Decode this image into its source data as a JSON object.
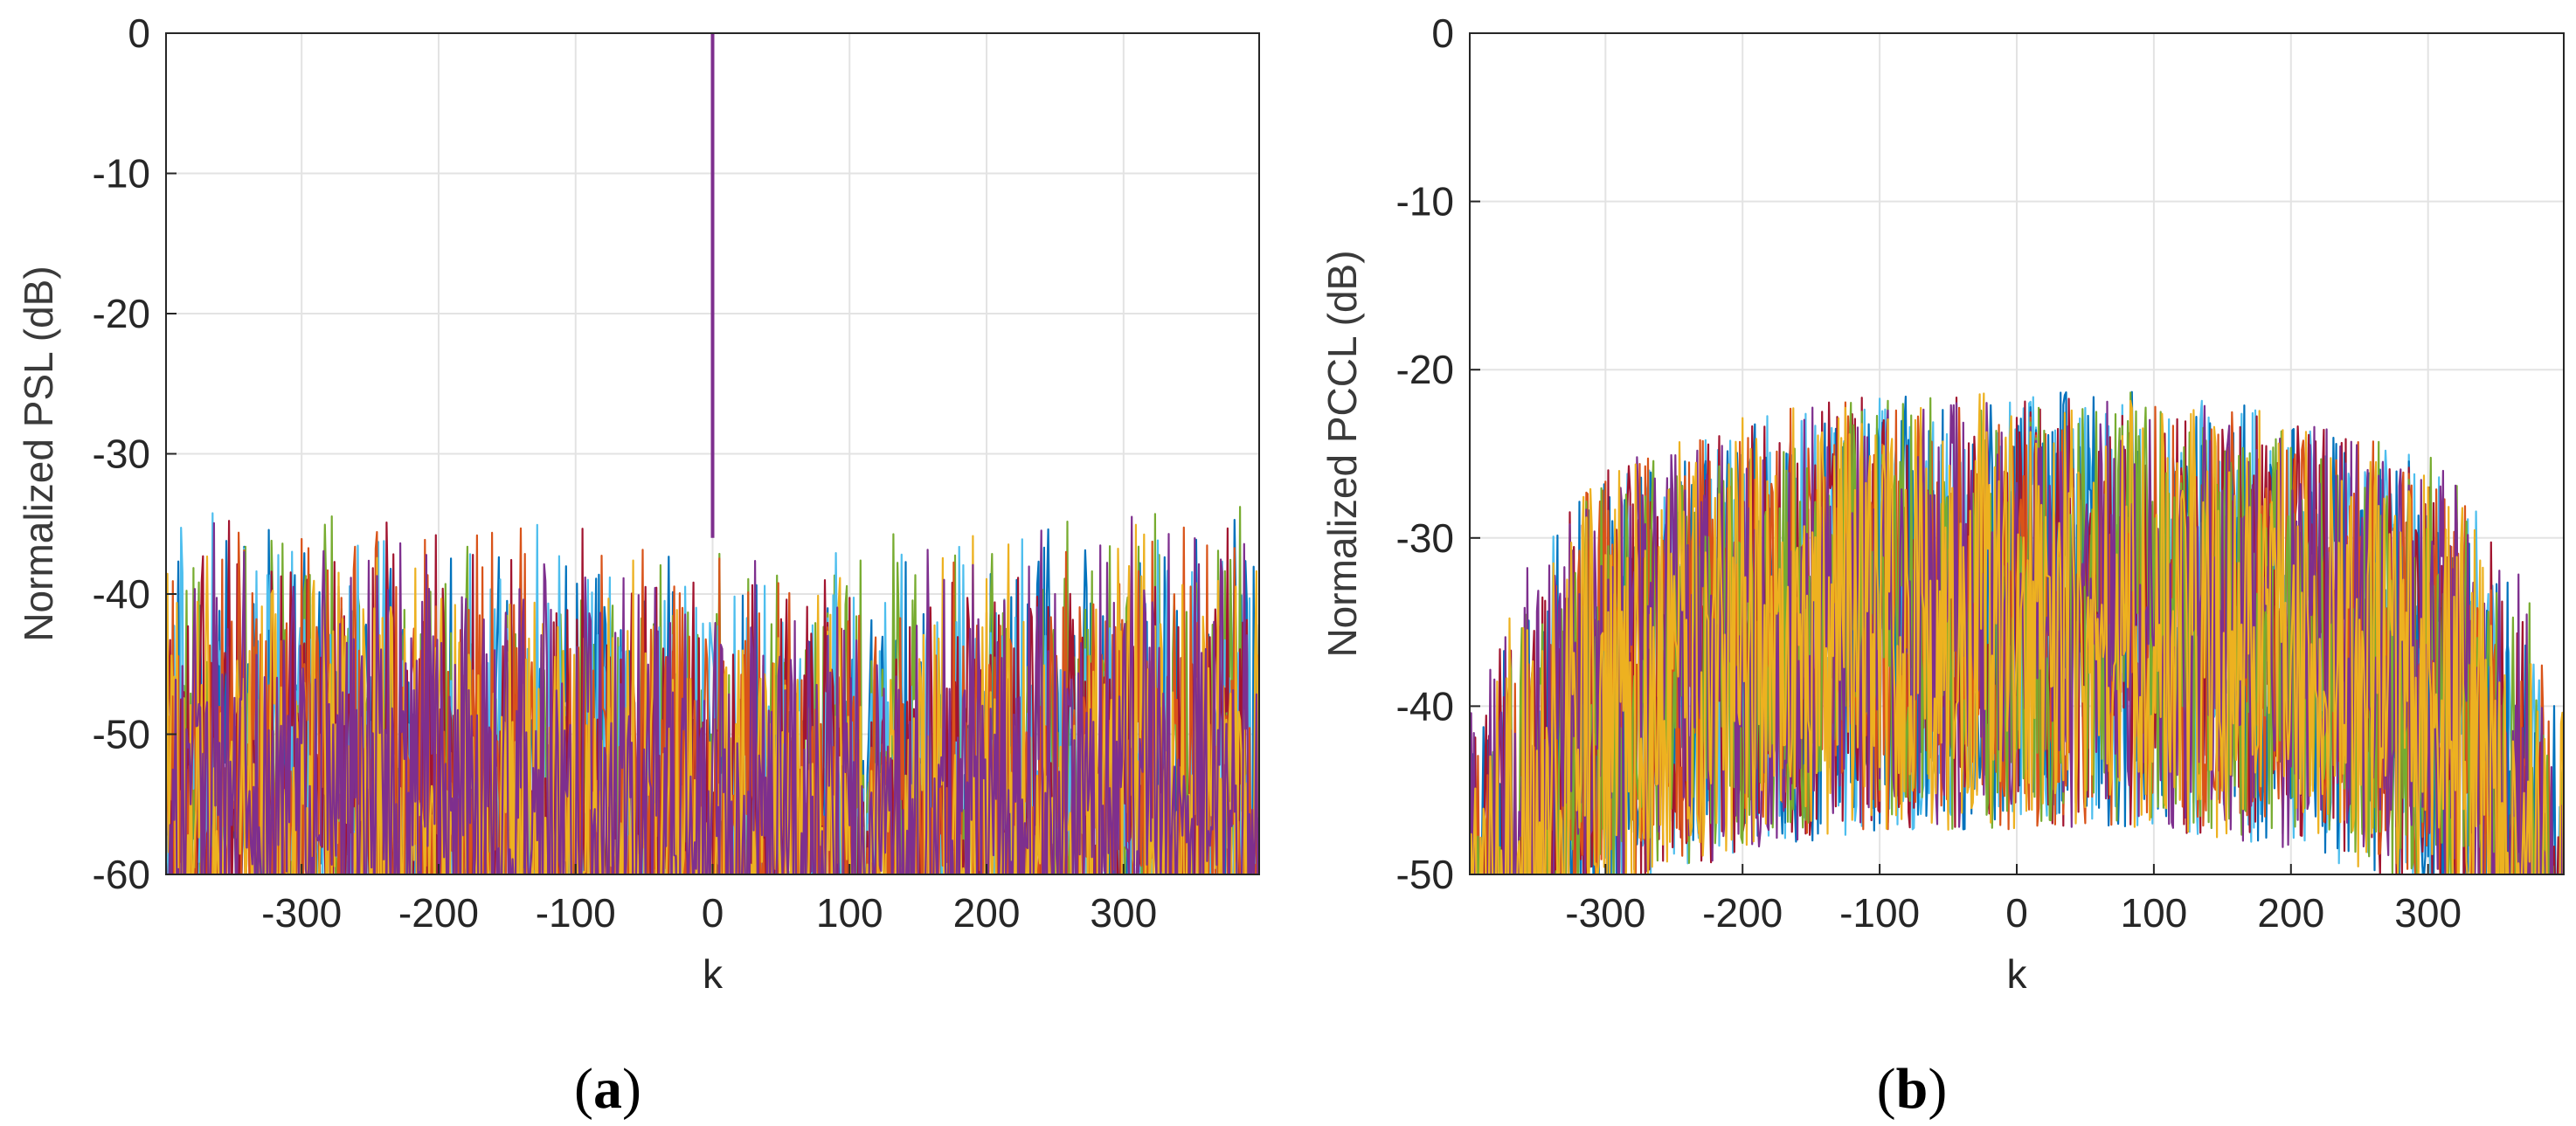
{
  "figure": {
    "panels": [
      {
        "label_open": "(",
        "label_letter": "a",
        "label_close": ")"
      },
      {
        "label_open": "(",
        "label_letter": "b",
        "label_close": ")"
      }
    ]
  },
  "colors": {
    "series": [
      "#0072BD",
      "#D95319",
      "#EDB120",
      "#7E2F8E",
      "#77AC30",
      "#4DBEEE",
      "#A2142F"
    ],
    "grid": "#e3e3e3",
    "axes": "#262626"
  },
  "chart_data": [
    {
      "type": "line",
      "title": "",
      "xlabel": "k",
      "ylabel": "Normalized PSL (dB)",
      "xlim": [
        -399,
        399
      ],
      "ylim": [
        -60,
        0
      ],
      "xticks": [
        -300,
        -200,
        -100,
        0,
        100,
        200,
        300
      ],
      "xtick_labels": [
        "-300",
        "-200",
        "-100",
        "0",
        "100",
        "200",
        "300"
      ],
      "yticks": [
        0,
        -10,
        -20,
        -30,
        -40,
        -50,
        -60
      ],
      "ytick_labels": [
        "0",
        "-10",
        "-20",
        "-30",
        "-40",
        "-50",
        "-60"
      ],
      "grid": true,
      "series_count": 7,
      "mainlobe": {
        "x": 0,
        "y": 0
      },
      "sidelobe_envelope": {
        "x": [
          -390,
          -300,
          -200,
          -100,
          0,
          100,
          200,
          300,
          390
        ],
        "y": [
          -33,
          -33.3,
          -34,
          -35,
          -36,
          -35,
          -34,
          -33.3,
          -33
        ]
      }
    },
    {
      "type": "line",
      "title": "",
      "xlabel": "k",
      "ylabel": "Normalized PCCL (dB)",
      "xlim": [
        -399,
        399
      ],
      "ylim": [
        -50,
        0
      ],
      "xticks": [
        -300,
        -200,
        -100,
        0,
        100,
        200,
        300
      ],
      "xtick_labels": [
        "-300",
        "-200",
        "-100",
        "0",
        "100",
        "200",
        "300"
      ],
      "yticks": [
        0,
        -10,
        -20,
        -30,
        -40,
        -50
      ],
      "ytick_labels": [
        "0",
        "-10",
        "-20",
        "-30",
        "-40",
        "-50"
      ],
      "grid": true,
      "series_count": 7,
      "peak_envelope": {
        "x": [
          -399,
          -350,
          -300,
          -200,
          -100,
          0,
          100,
          200,
          300,
          350,
          399
        ],
        "y": [
          -38,
          -30,
          -26,
          -22.5,
          -21.5,
          -21.3,
          -21.3,
          -22.5,
          -25,
          -29,
          -38
        ]
      }
    }
  ]
}
